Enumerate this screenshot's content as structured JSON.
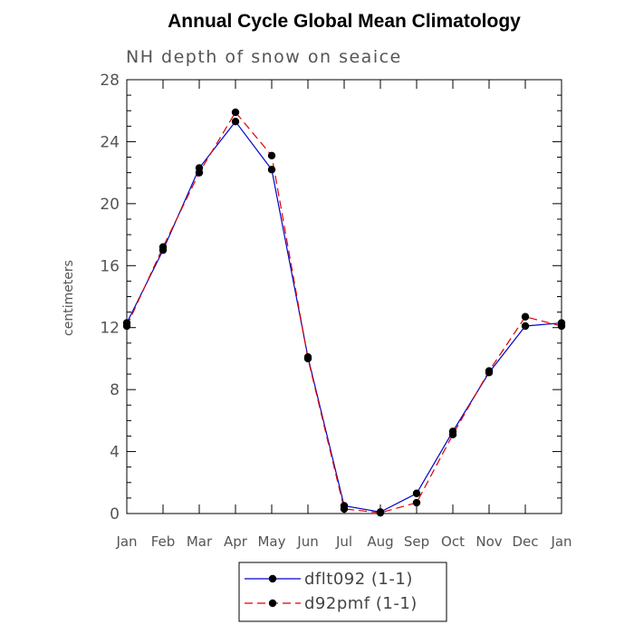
{
  "chart_data": {
    "type": "line",
    "title": "Annual Cycle Global Mean Climatology",
    "subtitle": "NH depth of snow on seaice",
    "ylabel": "centimeters",
    "xlabel": "",
    "categories": [
      "Jan",
      "Feb",
      "Mar",
      "Apr",
      "May",
      "Jun",
      "Jul",
      "Aug",
      "Sep",
      "Oct",
      "Nov",
      "Dec",
      "Jan"
    ],
    "ylim": [
      0,
      28
    ],
    "yticks": [
      "0",
      "4",
      "8",
      "12",
      "16",
      "20",
      "24",
      "28"
    ],
    "grid": false,
    "legend_position": "bottom-center",
    "series": [
      {
        "name": "dflt092 (1-1)",
        "color": "#0000cc",
        "dash": "solid",
        "values": [
          12.3,
          17.0,
          22.3,
          25.3,
          22.2,
          10.1,
          0.5,
          0.1,
          1.3,
          5.3,
          9.1,
          12.1,
          12.3
        ]
      },
      {
        "name": "d92pmf (1-1)",
        "color": "#dd0000",
        "dash": "dashed",
        "values": [
          12.1,
          17.2,
          22.0,
          25.9,
          23.1,
          10.0,
          0.3,
          0.05,
          0.7,
          5.1,
          9.2,
          12.7,
          12.1
        ]
      }
    ]
  }
}
